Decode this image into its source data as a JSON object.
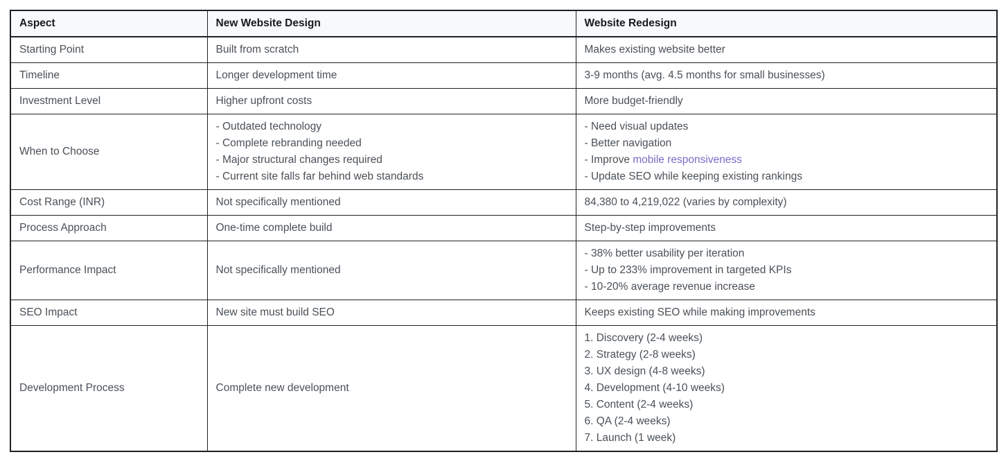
{
  "table": {
    "columns": [
      "Aspect",
      "New Website Design",
      "Website Redesign"
    ],
    "link_color": "#7a6ac4",
    "header_bg": "#f8f9fa",
    "border_color": "#1d2125",
    "body_text_color": "#495057",
    "rows": [
      {
        "aspect": [
          "Starting Point"
        ],
        "new_website_design": [
          "Built from scratch"
        ],
        "website_redesign": [
          "Makes existing website better"
        ]
      },
      {
        "aspect": [
          "Timeline"
        ],
        "new_website_design": [
          "Longer development time"
        ],
        "website_redesign": [
          "3-9 months (avg. 4.5 months for small businesses)"
        ]
      },
      {
        "aspect": [
          "Investment Level"
        ],
        "new_website_design": [
          "Higher upfront costs"
        ],
        "website_redesign": [
          "More budget-friendly"
        ]
      },
      {
        "aspect": [
          "When to Choose"
        ],
        "new_website_design": [
          "- Outdated technology",
          "- Complete rebranding needed",
          "- Major structural changes required",
          "- Current site falls far behind web standards"
        ],
        "website_redesign": [
          "- Need visual updates",
          "- Better navigation",
          {
            "segments": [
              {
                "text": "- Improve "
              },
              {
                "text": "mobile responsiveness",
                "link": true
              }
            ]
          },
          "- Update SEO while keeping existing rankings"
        ]
      },
      {
        "aspect": [
          "Cost Range (INR)"
        ],
        "new_website_design": [
          "Not specifically mentioned"
        ],
        "website_redesign": [
          "84,380 to 4,219,022 (varies by complexity)"
        ]
      },
      {
        "aspect": [
          "Process Approach"
        ],
        "new_website_design": [
          "One-time complete build"
        ],
        "website_redesign": [
          "Step-by-step improvements"
        ]
      },
      {
        "aspect": [
          "Performance Impact"
        ],
        "new_website_design": [
          "Not specifically mentioned"
        ],
        "website_redesign": [
          "- 38% better usability per iteration",
          "- Up to 233% improvement in targeted KPIs",
          "- 10-20% average revenue increase"
        ]
      },
      {
        "aspect": [
          "SEO Impact"
        ],
        "new_website_design": [
          "New site must build SEO"
        ],
        "website_redesign": [
          "Keeps existing SEO while making improvements"
        ]
      },
      {
        "aspect": [
          "Development Process"
        ],
        "new_website_design": [
          "Complete new development"
        ],
        "website_redesign": [
          "1. Discovery (2-4 weeks)",
          "2. Strategy (2-8 weeks)",
          "3. UX design (4-8 weeks)",
          "4. Development (4-10 weeks)",
          "5. Content (2-4 weeks)",
          "6. QA (2-4 weeks)",
          "7. Launch (1 week)"
        ]
      }
    ]
  }
}
